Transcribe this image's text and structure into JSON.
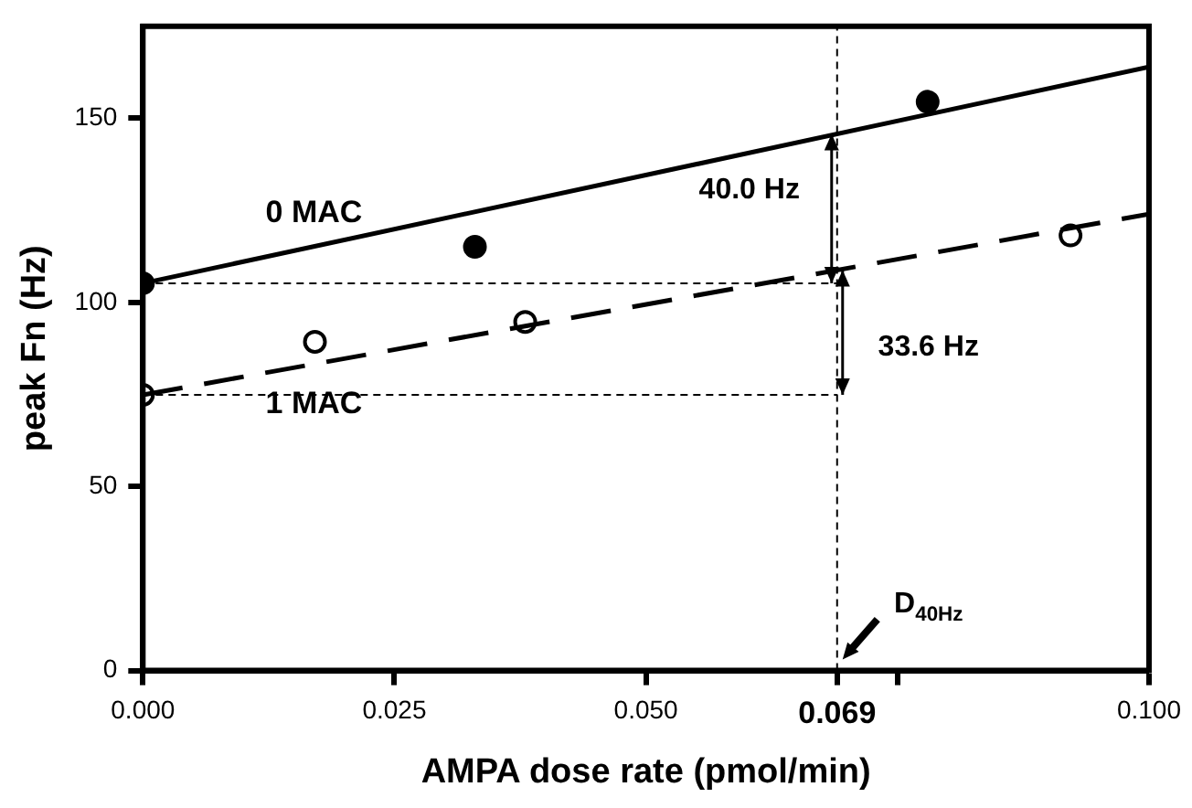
{
  "chart_data": {
    "type": "scatter",
    "xlabel": "AMPA dose rate (pmol/min)",
    "ylabel": "peak Fn (Hz)",
    "xlim": [
      0,
      0.1
    ],
    "ylim": [
      0,
      175
    ],
    "xticks": [
      {
        "value": 0,
        "label": "0.000"
      },
      0.025,
      {
        "value": 0.05,
        "label": "0.050"
      },
      {
        "value": 0.069,
        "label": "0.069"
      },
      {
        "value": 0.075,
        "label": null
      },
      {
        "value": 0.1,
        "label": "0.100"
      }
    ],
    "yticks": [
      0,
      50,
      100,
      150
    ],
    "legend": false,
    "series": [
      {
        "type": "line",
        "name": "0 MAC",
        "color": "#000000",
        "x": [
          0,
          0.1
        ],
        "values": [
          105.2,
          164
        ],
        "line_style": "solid",
        "marker": "none"
      },
      {
        "type": "line",
        "name": "1 MAC",
        "color": "#000000",
        "x": [
          0,
          0.1
        ],
        "values": [
          74.9,
          124
        ],
        "line_style": "dashed",
        "marker": "none"
      },
      {
        "color": "#000000",
        "x": [
          0,
          0.033,
          0.078
        ],
        "values": [
          105.2,
          115.1,
          154.5
        ],
        "marker": "circle"
      },
      {
        "color": "#000000",
        "x": [
          0,
          0.0171,
          0.038,
          0.0922
        ],
        "values": [
          74.9,
          89.3,
          94.7,
          118.2
        ],
        "marker": "circle"
      }
    ],
    "ref_lines": [
      {
        "axis": "x",
        "value": 0.069
      },
      {
        "axis": "y",
        "value": 105.2
      },
      {
        "axis": "y",
        "value": 74.9
      }
    ],
    "annotations": [
      "40.0 Hz",
      "33.6 Hz",
      {
        "text": "D$_{40Hz}$",
        "x": 0.069,
        "y": 0
      }
    ]
  }
}
